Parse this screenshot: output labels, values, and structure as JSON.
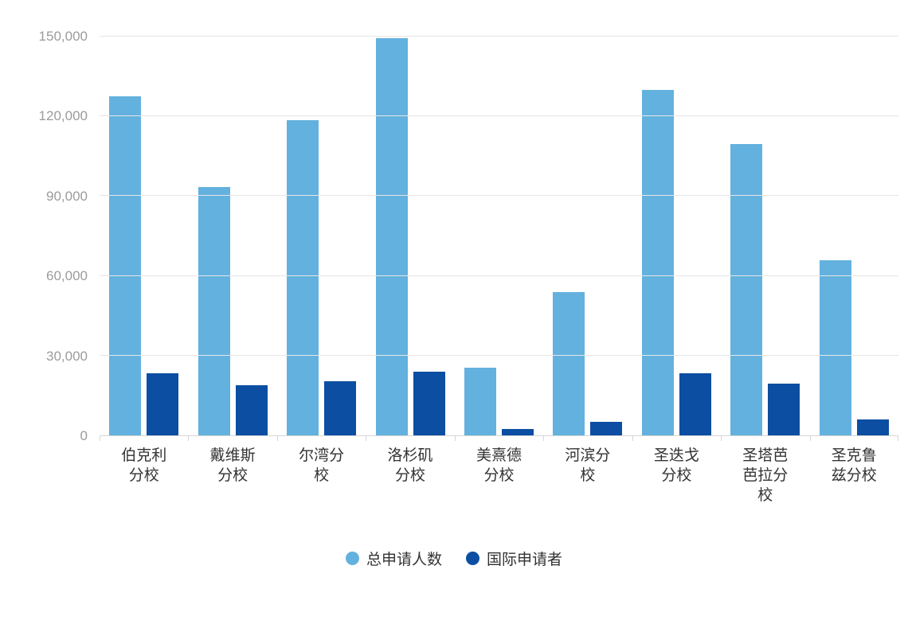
{
  "chart_data": {
    "type": "bar",
    "title": "",
    "categories": [
      "伯克利分校",
      "戴维斯分校",
      "尔湾分校",
      "洛杉矶分校",
      "美熹德分校",
      "河滨分校",
      "圣迭戈分校",
      "圣塔芭芭拉分校",
      "圣克鲁兹分校"
    ],
    "series": [
      {
        "name": "总申请人数",
        "color": "#63b1de",
        "values": [
          127500,
          93500,
          118500,
          149500,
          25500,
          54000,
          130000,
          109500,
          66000
        ]
      },
      {
        "name": "国际申请者",
        "color": "#0b4ea2",
        "values": [
          23500,
          19000,
          20500,
          24000,
          2500,
          5000,
          23500,
          19500,
          6000
        ]
      }
    ],
    "xlabel": "",
    "ylabel": "",
    "ylim": [
      0,
      150000
    ],
    "y_ticks": [
      0,
      30000,
      60000,
      90000,
      120000,
      150000
    ],
    "y_tick_labels": [
      "0",
      "30,000",
      "60,000",
      "90,000",
      "120,000",
      "150,000"
    ],
    "grid": true,
    "legend_position": "bottom"
  },
  "colors": {
    "series_total": "#63b1de",
    "series_international": "#0b4ea2",
    "grid_line": "#e6e6e6",
    "axis_line": "#d6d6d6",
    "y_label_text": "#9b9b9b",
    "x_label_text": "#333333",
    "legend_text": "#333333",
    "background": "#ffffff"
  }
}
